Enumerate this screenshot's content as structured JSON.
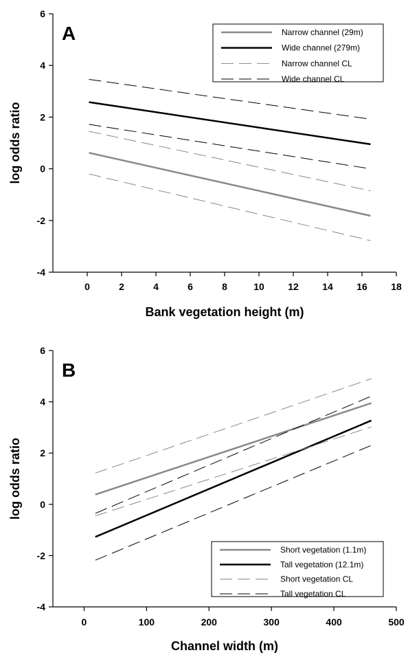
{
  "chart_data": [
    {
      "type": "line",
      "panel_label": "A",
      "xlabel": "Bank vegetation height (m)",
      "ylabel": "log odds ratio",
      "xlim": [
        -2,
        18
      ],
      "ylim": [
        -4,
        6
      ],
      "xticks": [
        0,
        2,
        4,
        6,
        8,
        10,
        12,
        14,
        16,
        18
      ],
      "yticks": [
        -4,
        -2,
        0,
        2,
        4,
        6
      ],
      "legend_position": "top-right",
      "grid": false,
      "series": [
        {
          "name": "Narrow channel (29m)",
          "x": [
            0.1,
            16.5
          ],
          "y": [
            0.62,
            -1.82
          ],
          "color": "#888888",
          "style": "solid",
          "width": 2.5
        },
        {
          "name": "Wide channel (279m)",
          "x": [
            0.1,
            16.5
          ],
          "y": [
            2.58,
            0.95
          ],
          "color": "#000000",
          "style": "solid",
          "width": 2.5
        },
        {
          "name": "Narrow channel CL",
          "x": [
            0.1,
            16.5
          ],
          "y": [
            1.45,
            -0.85
          ],
          "color": "#888888",
          "style": "dashed",
          "width": 1
        },
        {
          "name": "",
          "x": [
            0.1,
            16.5
          ],
          "y": [
            -0.2,
            -2.78
          ],
          "color": "#888888",
          "style": "dashed",
          "width": 1
        },
        {
          "name": "Wide channel CL",
          "x": [
            0.1,
            16.5
          ],
          "y": [
            3.46,
            1.92
          ],
          "color": "#000000",
          "style": "dashed",
          "width": 1
        },
        {
          "name": "",
          "x": [
            0.1,
            16.5
          ],
          "y": [
            1.72,
            0.0
          ],
          "color": "#000000",
          "style": "dashed",
          "width": 1
        }
      ]
    },
    {
      "type": "line",
      "panel_label": "B",
      "xlabel": "Channel width (m)",
      "ylabel": "log odds ratio",
      "xlim": [
        -50,
        500
      ],
      "ylim": [
        -4,
        6
      ],
      "xticks": [
        0,
        100,
        200,
        300,
        400,
        500
      ],
      "yticks": [
        -4,
        -2,
        0,
        2,
        4,
        6
      ],
      "legend_position": "bottom-right",
      "grid": false,
      "series": [
        {
          "name": "Short vegetation (1.1m)",
          "x": [
            18,
            460
          ],
          "y": [
            0.38,
            3.95
          ],
          "color": "#888888",
          "style": "solid",
          "width": 2.5
        },
        {
          "name": "Tall vegetation (12.1m)",
          "x": [
            18,
            460
          ],
          "y": [
            -1.27,
            3.27
          ],
          "color": "#000000",
          "style": "solid",
          "width": 2.5
        },
        {
          "name": "Short vegetation CL",
          "x": [
            18,
            460
          ],
          "y": [
            1.22,
            4.9
          ],
          "color": "#888888",
          "style": "dashed",
          "width": 1
        },
        {
          "name": "",
          "x": [
            18,
            460
          ],
          "y": [
            -0.45,
            3.02
          ],
          "color": "#888888",
          "style": "dashed",
          "width": 1
        },
        {
          "name": "Tall vegetation CL",
          "x": [
            18,
            460
          ],
          "y": [
            -0.35,
            4.22
          ],
          "color": "#000000",
          "style": "dashed",
          "width": 1
        },
        {
          "name": "",
          "x": [
            18,
            460
          ],
          "y": [
            -2.18,
            2.3
          ],
          "color": "#000000",
          "style": "dashed",
          "width": 1
        }
      ]
    }
  ]
}
